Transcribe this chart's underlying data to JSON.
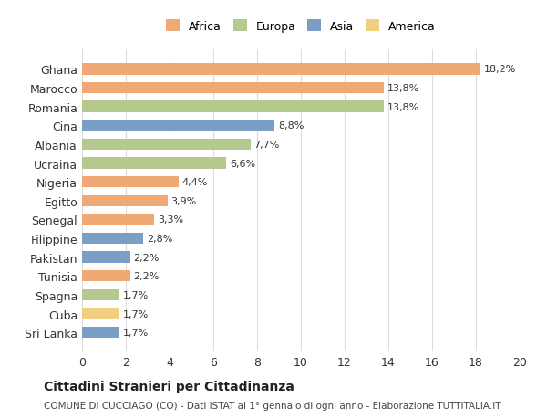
{
  "countries": [
    "Ghana",
    "Marocco",
    "Romania",
    "Cina",
    "Albania",
    "Ucraina",
    "Nigeria",
    "Egitto",
    "Senegal",
    "Filippine",
    "Pakistan",
    "Tunisia",
    "Spagna",
    "Cuba",
    "Sri Lanka"
  ],
  "values": [
    18.2,
    13.8,
    13.8,
    8.8,
    7.7,
    6.6,
    4.4,
    3.9,
    3.3,
    2.8,
    2.2,
    2.2,
    1.7,
    1.7,
    1.7
  ],
  "labels": [
    "18,2%",
    "13,8%",
    "13,8%",
    "8,8%",
    "7,7%",
    "6,6%",
    "4,4%",
    "3,9%",
    "3,3%",
    "2,8%",
    "2,2%",
    "2,2%",
    "1,7%",
    "1,7%",
    "1,7%"
  ],
  "continents": [
    "Africa",
    "Africa",
    "Europa",
    "Asia",
    "Europa",
    "Europa",
    "Africa",
    "Africa",
    "Africa",
    "Asia",
    "Asia",
    "Africa",
    "Europa",
    "America",
    "Asia"
  ],
  "colors": {
    "Africa": "#F0A875",
    "Europa": "#B5C98E",
    "Asia": "#7B9EC5",
    "America": "#F0D080"
  },
  "legend_order": [
    "Africa",
    "Europa",
    "Asia",
    "America"
  ],
  "xlim": [
    0,
    20
  ],
  "xticks": [
    0,
    2,
    4,
    6,
    8,
    10,
    12,
    14,
    16,
    18,
    20
  ],
  "title": "Cittadini Stranieri per Cittadinanza",
  "subtitle": "COMUNE DI CUCCIAGO (CO) - Dati ISTAT al 1° gennaio di ogni anno - Elaborazione TUTTITALIA.IT",
  "bg_color": "#ffffff",
  "grid_color": "#dddddd"
}
